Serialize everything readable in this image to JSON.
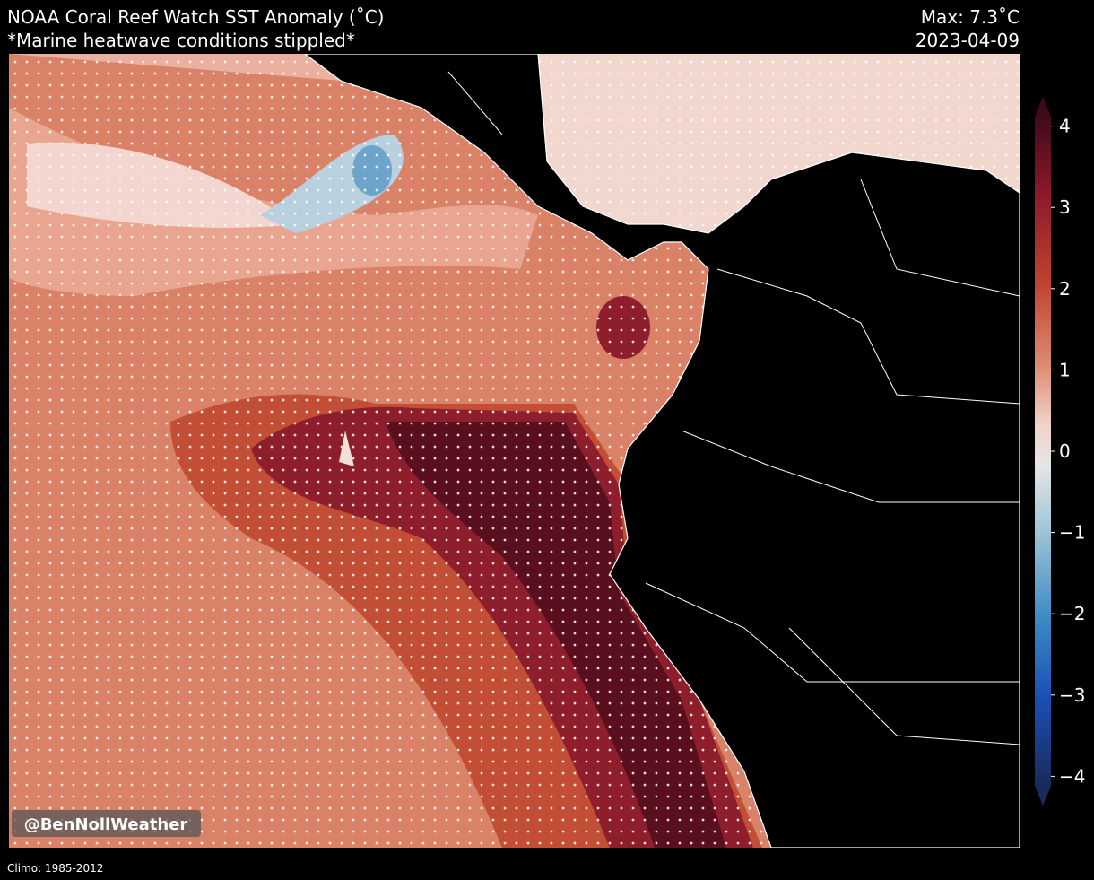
{
  "header": {
    "title": "NOAA Coral Reef Watch SST Anomaly (˚C)",
    "subtitle": "*Marine heatwave conditions stippled*",
    "max": "Max: 7.3˚C",
    "date": "2023-04-09"
  },
  "colorbar": {
    "ticks": [
      4,
      3,
      2,
      1,
      0,
      {
        "value": -1,
        "label": "−1"
      },
      {
        "value": -2,
        "label": "−2"
      },
      {
        "value": -3,
        "label": "−3"
      },
      {
        "value": -4,
        "label": "−4"
      }
    ]
  },
  "watermark": "@BenNollWeather",
  "footer": "Climo: 1985-2012"
}
